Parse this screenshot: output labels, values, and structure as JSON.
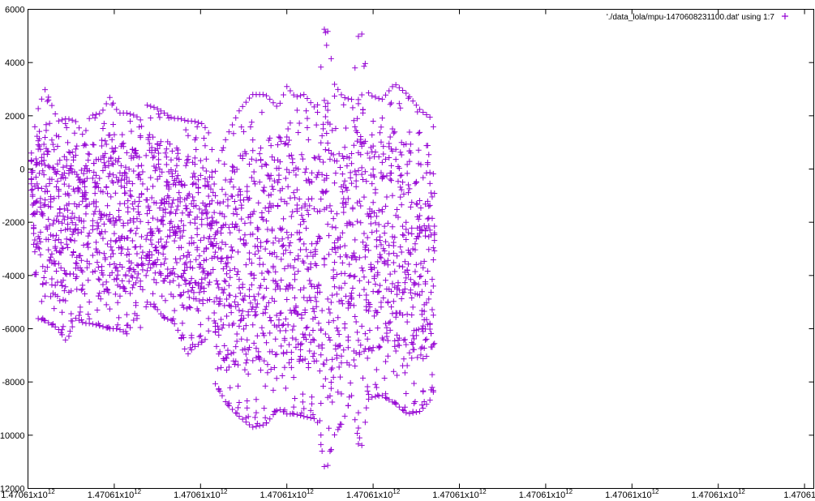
{
  "chart_data": {
    "type": "scatter",
    "title": "",
    "xlabel": "",
    "ylabel": "",
    "ylim": [
      -12000,
      6000
    ],
    "y_ticks": [
      -12000,
      -10000,
      -8000,
      -6000,
      -4000,
      -2000,
      0,
      2000,
      4000,
      6000
    ],
    "y_tick_labels": [
      "-12000",
      "-10000",
      "-8000",
      "-6000",
      "-4000",
      "-2000",
      "0",
      "2000",
      "4000",
      "6000"
    ],
    "x_ticks": [
      0,
      1,
      2,
      3,
      4,
      5,
      6,
      7,
      8,
      9
    ],
    "x_tick_labels": [
      {
        "mantissa": "1.47061x10",
        "exponent": "12"
      },
      {
        "mantissa": "1.47061x10",
        "exponent": "12"
      },
      {
        "mantissa": "1.47061x10",
        "exponent": "12"
      },
      {
        "mantissa": "1.47061x10",
        "exponent": "12"
      },
      {
        "mantissa": "1.47061x10",
        "exponent": "12"
      },
      {
        "mantissa": "1.47061x10",
        "exponent": "12"
      },
      {
        "mantissa": "1.47061x10",
        "exponent": "12"
      },
      {
        "mantissa": "1.47061x10",
        "exponent": "12"
      },
      {
        "mantissa": "1.47061x10",
        "exponent": "12"
      },
      {
        "mantissa": "1.47061x1",
        "exponent": ""
      }
    ],
    "grid": false,
    "legend_position": "top-right",
    "series": [
      {
        "name": "'./data_lola/mpu-1470608231100.dat' using 1:7",
        "color": "#9400d3",
        "marker": "plus",
        "envelope": [
          {
            "x": 0.04,
            "y_min": -800,
            "y_max": 600
          },
          {
            "x": 0.1,
            "y_min": -5600,
            "y_max": 2100
          },
          {
            "x": 0.2,
            "y_min": -5700,
            "y_max": 3000
          },
          {
            "x": 0.35,
            "y_min": -6000,
            "y_max": 1800
          },
          {
            "x": 0.45,
            "y_min": -6500,
            "y_max": 1900
          },
          {
            "x": 0.55,
            "y_min": -5600,
            "y_max": 1800
          },
          {
            "x": 0.65,
            "y_min": -5800,
            "y_max": 1200
          },
          {
            "x": 0.72,
            "y_min": -5800,
            "y_max": 2000
          },
          {
            "x": 0.85,
            "y_min": -5900,
            "y_max": 2100
          },
          {
            "x": 0.95,
            "y_min": -6000,
            "y_max": 2700
          },
          {
            "x": 1.05,
            "y_min": -6000,
            "y_max": 2100
          },
          {
            "x": 1.15,
            "y_min": -6200,
            "y_max": 2100
          },
          {
            "x": 1.25,
            "y_min": -5500,
            "y_max": 2000
          },
          {
            "x": 1.32,
            "y_min": -6100,
            "y_max": 1800
          },
          {
            "x": 1.38,
            "y_min": -5000,
            "y_max": 2400
          },
          {
            "x": 1.48,
            "y_min": -5200,
            "y_max": 2300
          },
          {
            "x": 1.58,
            "y_min": -5600,
            "y_max": 2100
          },
          {
            "x": 1.68,
            "y_min": -5700,
            "y_max": 1900
          },
          {
            "x": 1.76,
            "y_min": -6200,
            "y_max": 1900
          },
          {
            "x": 1.84,
            "y_min": -7000,
            "y_max": 1800
          },
          {
            "x": 1.92,
            "y_min": -6700,
            "y_max": 1800
          },
          {
            "x": 2.02,
            "y_min": -6500,
            "y_max": 1700
          },
          {
            "x": 2.09,
            "y_min": -6300,
            "y_max": 1400
          },
          {
            "x": 2.13,
            "y_min": -3000,
            "y_max": 800
          },
          {
            "x": 2.16,
            "y_min": -8000,
            "y_max": -200
          },
          {
            "x": 2.3,
            "y_min": -8800,
            "y_max": 1200
          },
          {
            "x": 2.45,
            "y_min": -9300,
            "y_max": 2200
          },
          {
            "x": 2.6,
            "y_min": -9700,
            "y_max": 2800
          },
          {
            "x": 2.75,
            "y_min": -9600,
            "y_max": 2800
          },
          {
            "x": 2.9,
            "y_min": -9000,
            "y_max": 2300
          },
          {
            "x": 3.0,
            "y_min": -9200,
            "y_max": 3100
          },
          {
            "x": 3.1,
            "y_min": -9200,
            "y_max": 2700
          },
          {
            "x": 3.2,
            "y_min": -9300,
            "y_max": 2800
          },
          {
            "x": 3.35,
            "y_min": -9400,
            "y_max": 2200
          },
          {
            "x": 3.45,
            "y_min": -11500,
            "y_max": 5800
          },
          {
            "x": 3.55,
            "y_min": -10000,
            "y_max": 3200
          },
          {
            "x": 3.65,
            "y_min": -9500,
            "y_max": 2700
          },
          {
            "x": 3.75,
            "y_min": -8500,
            "y_max": 2600
          },
          {
            "x": 3.85,
            "y_min": -10800,
            "y_max": 5600
          },
          {
            "x": 3.95,
            "y_min": -8600,
            "y_max": 2800
          },
          {
            "x": 4.1,
            "y_min": -8500,
            "y_max": 2600
          },
          {
            "x": 4.25,
            "y_min": -8800,
            "y_max": 3200
          },
          {
            "x": 4.4,
            "y_min": -9200,
            "y_max": 2800
          },
          {
            "x": 4.55,
            "y_min": -9100,
            "y_max": 2200
          },
          {
            "x": 4.68,
            "y_min": -8600,
            "y_max": 1900
          },
          {
            "x": 4.72,
            "y_min": -8100,
            "y_max": 1200
          }
        ]
      }
    ]
  }
}
